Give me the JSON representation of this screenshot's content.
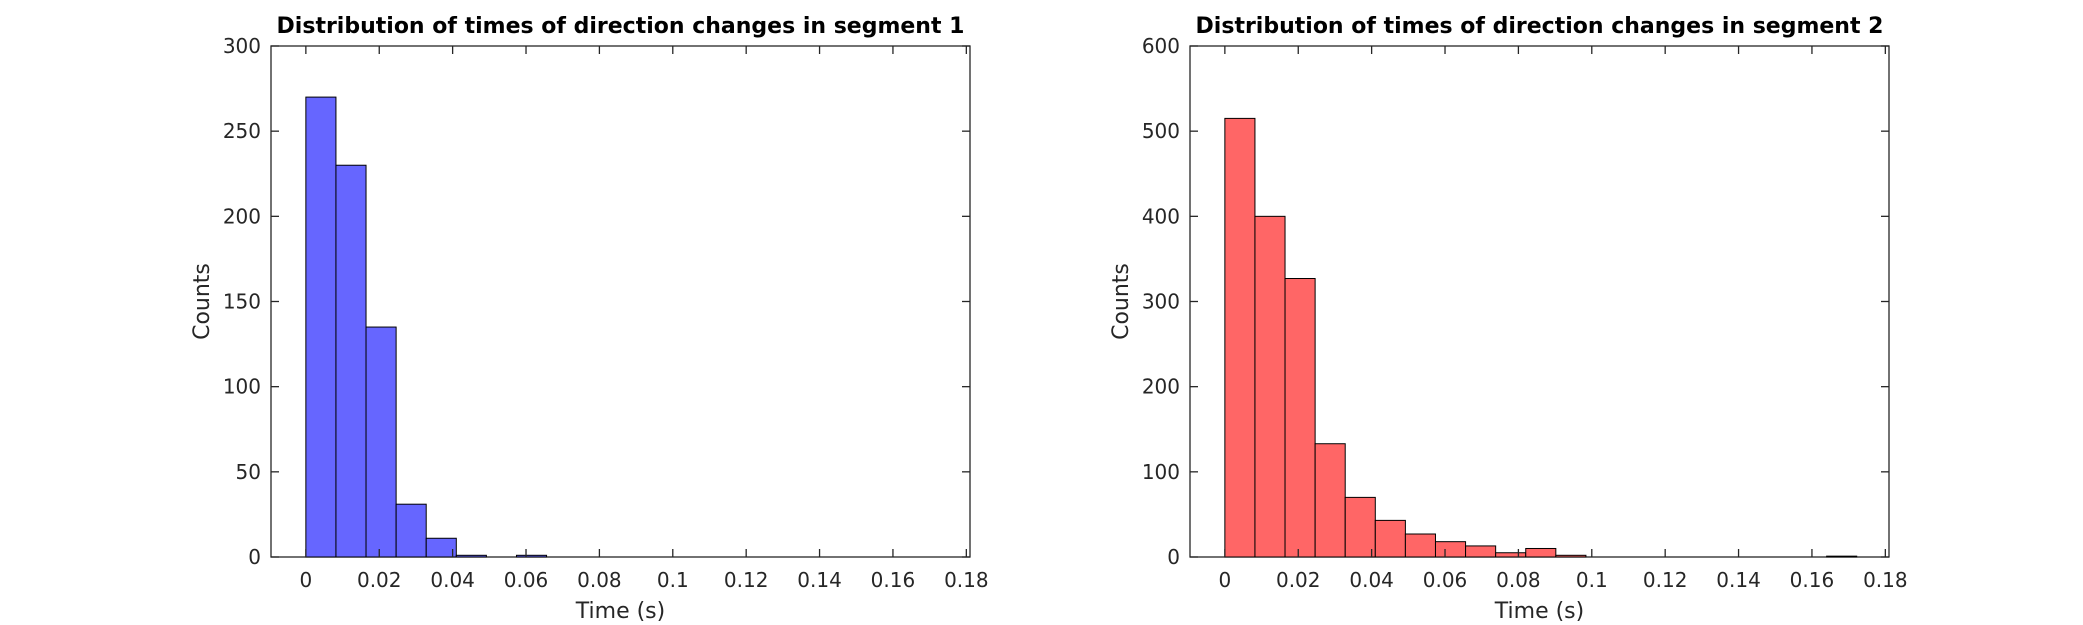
{
  "chart_data": [
    {
      "type": "bar",
      "title": "Distribution of times of direction changes in segment 1",
      "xlabel": "Time (s)",
      "ylabel": "Counts",
      "xlim": [
        -0.0095,
        0.181
      ],
      "ylim": [
        0,
        300
      ],
      "xticks": [
        0,
        0.02,
        0.04,
        0.06,
        0.08,
        0.1,
        0.12,
        0.14,
        0.16,
        0.18
      ],
      "xtick_labels": [
        "0",
        "0.02",
        "0.04",
        "0.06",
        "0.08",
        "0.1",
        "0.12",
        "0.14",
        "0.16",
        "0.18"
      ],
      "yticks": [
        0,
        50,
        100,
        150,
        200,
        250,
        300
      ],
      "ytick_labels": [
        "0",
        "50",
        "100",
        "150",
        "200",
        "250",
        "300"
      ],
      "bin_width": 0.0082,
      "bin_edges_start": 0,
      "values": [
        270,
        230,
        135,
        31,
        11,
        1,
        0,
        1
      ],
      "bar_color": "#6666ff",
      "grid": false
    },
    {
      "type": "bar",
      "title": "Distribution of times of direction changes in segment 2",
      "xlabel": "Time (s)",
      "ylabel": "Counts",
      "xlim": [
        -0.0095,
        0.181
      ],
      "ylim": [
        0,
        600
      ],
      "xticks": [
        0,
        0.02,
        0.04,
        0.06,
        0.08,
        0.1,
        0.12,
        0.14,
        0.16,
        0.18
      ],
      "xtick_labels": [
        "0",
        "0.02",
        "0.04",
        "0.06",
        "0.08",
        "0.1",
        "0.12",
        "0.14",
        "0.16",
        "0.18"
      ],
      "yticks": [
        0,
        100,
        200,
        300,
        400,
        500,
        600
      ],
      "ytick_labels": [
        "0",
        "100",
        "200",
        "300",
        "400",
        "500",
        "600"
      ],
      "bin_width": 0.0082,
      "bin_edges_start": 0,
      "values": [
        515,
        400,
        327,
        133,
        70,
        43,
        27,
        18,
        13,
        5,
        10,
        2,
        0,
        0,
        0,
        0,
        0,
        0,
        0,
        0,
        1
      ],
      "bar_color": "#ff6666",
      "grid": false
    }
  ]
}
